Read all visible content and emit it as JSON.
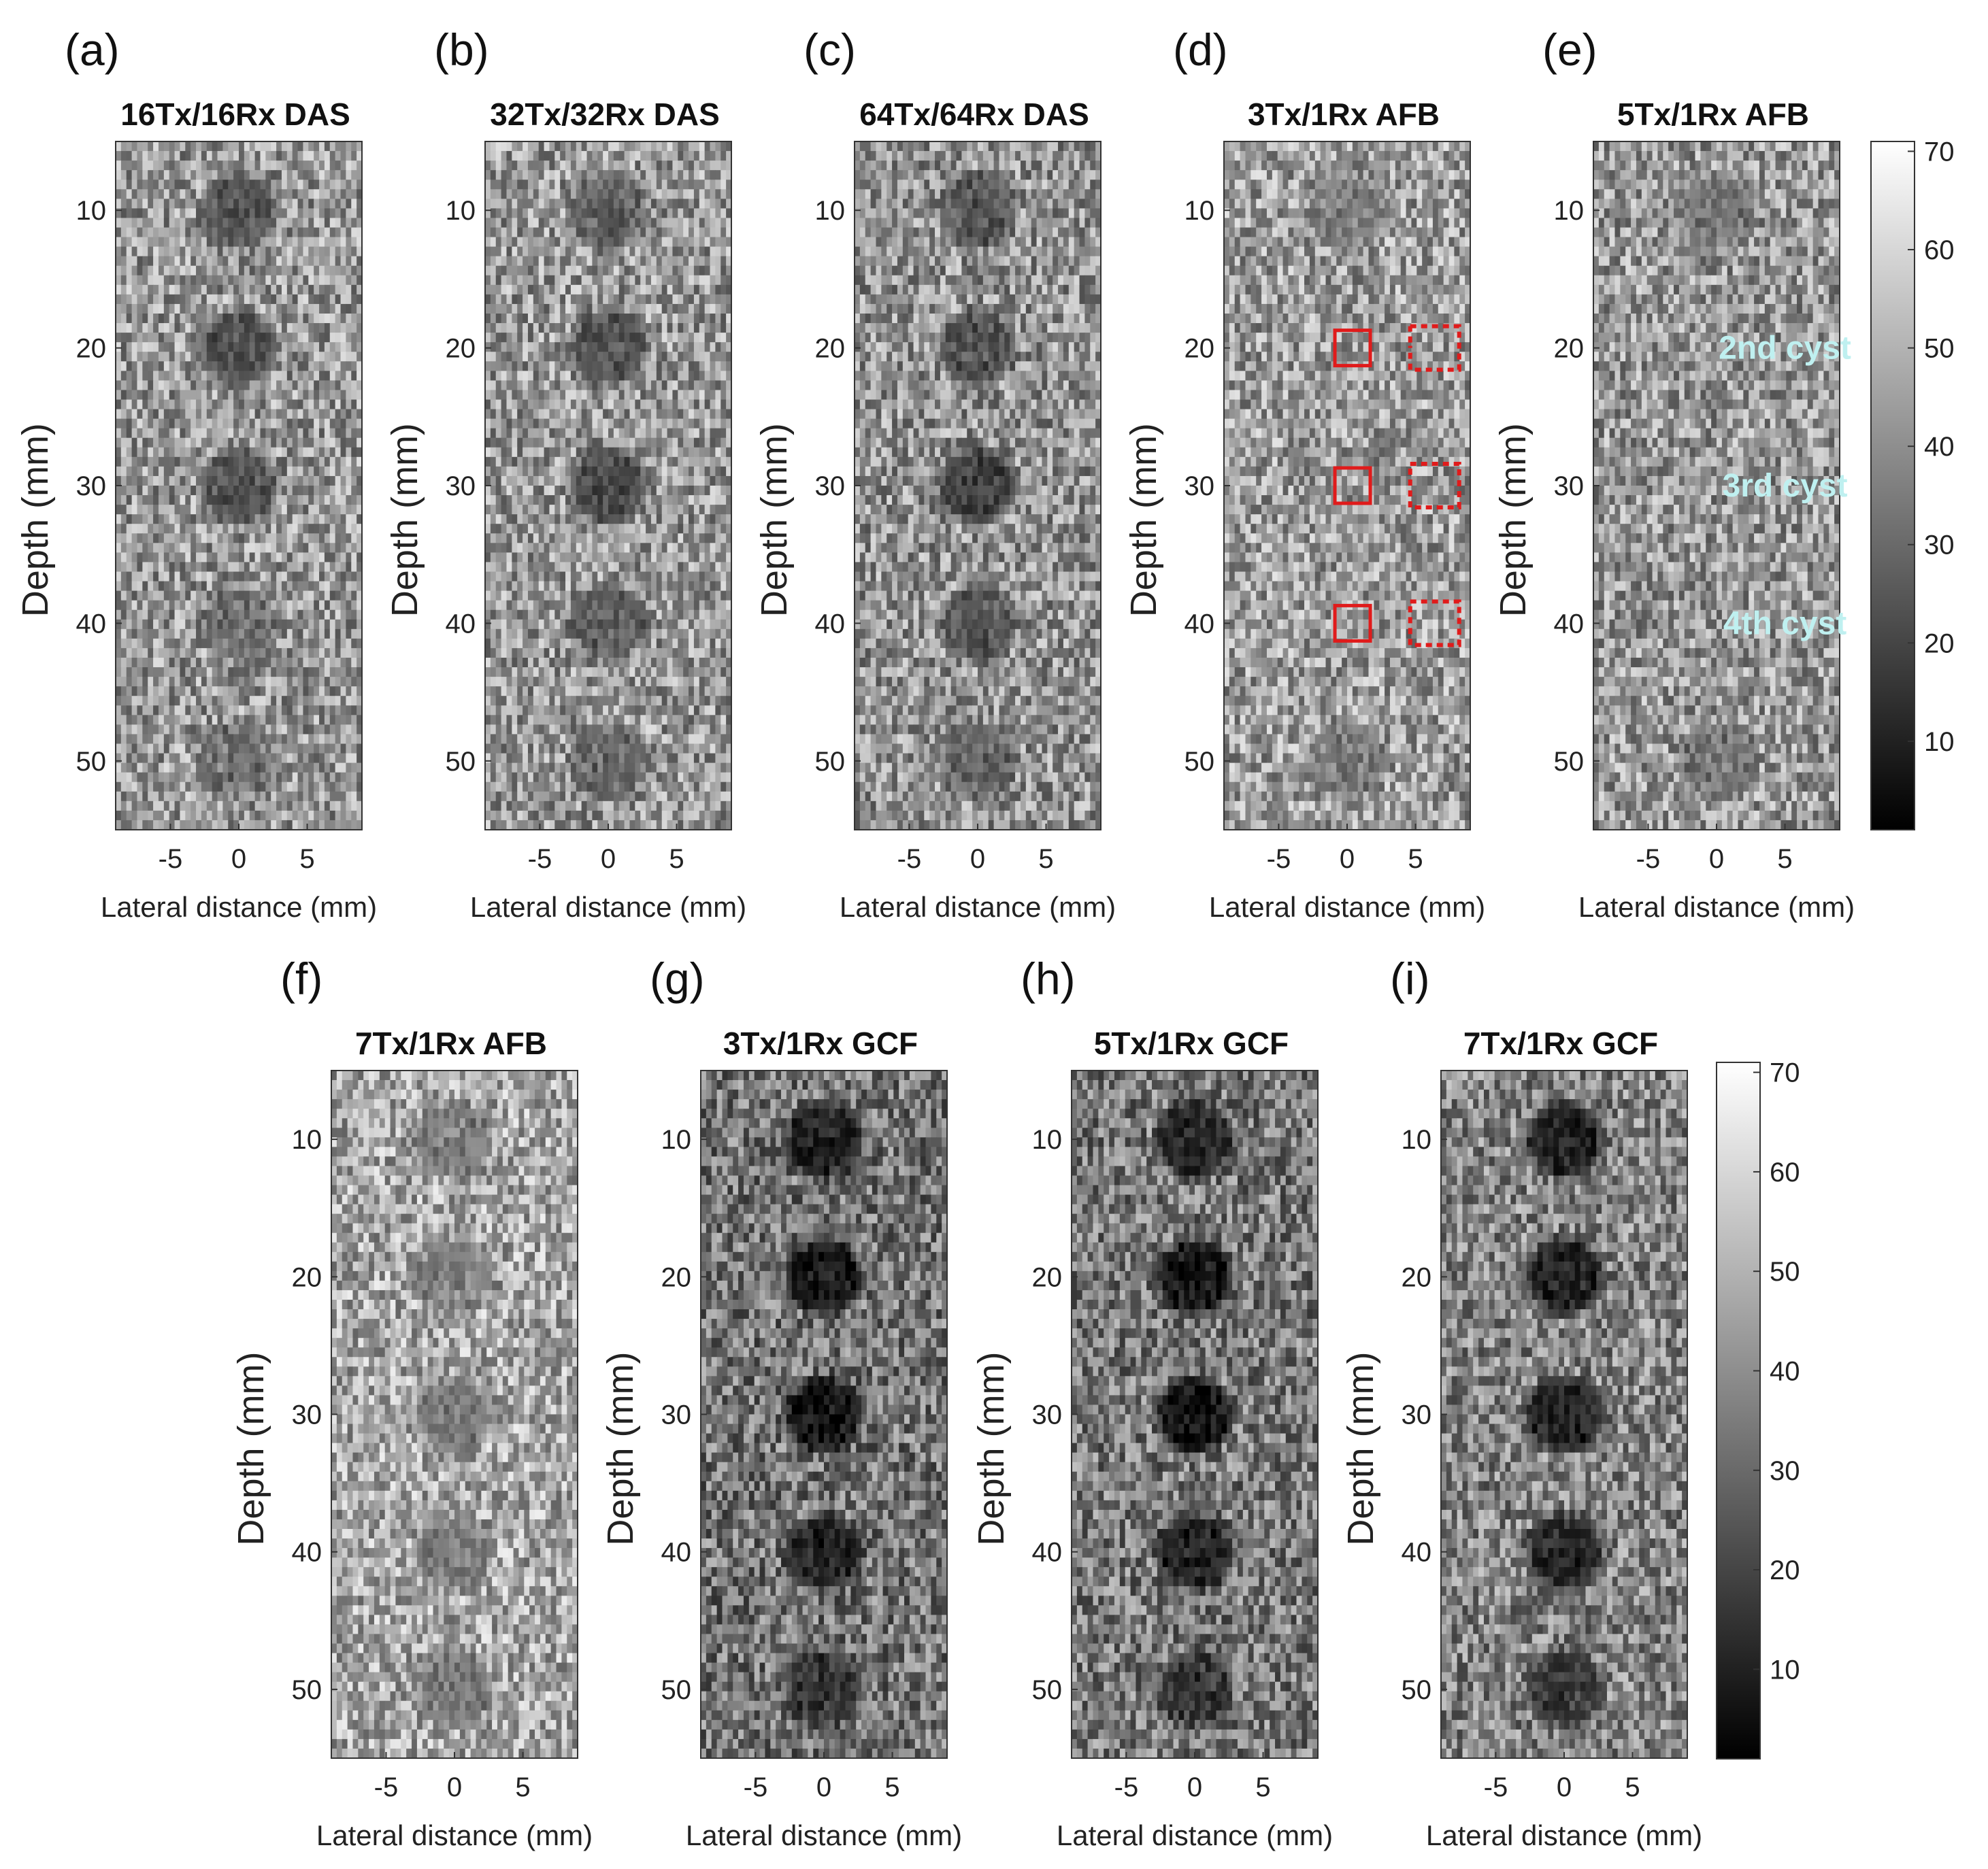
{
  "colors": {
    "roi_box": "#e01b1b",
    "annotation": "#bff0f0",
    "frame": "#333333"
  },
  "chart_data": {
    "type": "heatmap",
    "colormap": "gray",
    "colorbar": {
      "range": [
        1,
        71
      ],
      "ticks": [
        "10",
        "20",
        "30",
        "40",
        "50",
        "60",
        "70"
      ]
    },
    "xlabel": "Lateral distance (mm)",
    "ylabel": "Depth (mm)",
    "xlim": [
      -9,
      9
    ],
    "ylim": [
      5,
      55
    ],
    "xticks": [
      "-5",
      "0",
      "5"
    ],
    "yticks": [
      "10",
      "20",
      "30",
      "40",
      "50"
    ],
    "cyst_depths_mm": [
      10,
      20,
      30,
      40,
      50
    ],
    "panels": [
      {
        "label": "(a)",
        "title": "16Tx/16Rx DAS",
        "bg": 0.6,
        "cyst": 0.28,
        "contrast": [
          0.75,
          0.85,
          0.85,
          0.55,
          0.45
        ]
      },
      {
        "label": "(b)",
        "title": "32Tx/32Rx DAS",
        "bg": 0.6,
        "cyst": 0.28,
        "contrast": [
          0.7,
          0.85,
          0.95,
          0.7,
          0.6
        ]
      },
      {
        "label": "(c)",
        "title": "64Tx/64Rx DAS",
        "bg": 0.58,
        "cyst": 0.25,
        "contrast": [
          0.7,
          0.75,
          1.0,
          0.7,
          0.55
        ]
      },
      {
        "label": "(d)",
        "title": "3Tx/1Rx AFB",
        "bg": 0.62,
        "cyst": 0.4,
        "contrast": [
          0.55,
          0.05,
          0.05,
          0.05,
          0.6
        ]
      },
      {
        "label": "(e)",
        "title": "5Tx/1Rx AFB",
        "bg": 0.6,
        "cyst": 0.38,
        "contrast": [
          0.6,
          0.05,
          0.05,
          0.05,
          0.65
        ]
      },
      {
        "label": "(f)",
        "title": "7Tx/1Rx AFB",
        "bg": 0.66,
        "cyst": 0.4,
        "contrast": [
          0.65,
          0.6,
          0.65,
          0.65,
          0.7
        ]
      },
      {
        "label": "(g)",
        "title": "3Tx/1Rx GCF",
        "bg": 0.46,
        "cyst": 0.08,
        "contrast": [
          0.85,
          0.95,
          1.0,
          0.85,
          0.65
        ]
      },
      {
        "label": "(h)",
        "title": "5Tx/1Rx GCF",
        "bg": 0.48,
        "cyst": 0.08,
        "contrast": [
          0.85,
          0.95,
          1.0,
          0.85,
          0.65
        ]
      },
      {
        "label": "(i)",
        "title": "7Tx/1Rx GCF",
        "bg": 0.52,
        "cyst": 0.1,
        "contrast": [
          0.9,
          0.9,
          0.9,
          0.85,
          0.7
        ]
      }
    ],
    "roi_markers": {
      "panel": "(d)",
      "solid_depths_mm": [
        20,
        30,
        40
      ],
      "dotted_depths_mm": [
        20,
        30,
        40
      ]
    },
    "annotations": [
      {
        "panel": "(e)",
        "text": "2nd cyst",
        "depth_mm": 20
      },
      {
        "panel": "(e)",
        "text": "3rd cyst",
        "depth_mm": 30
      },
      {
        "panel": "(e)",
        "text": "4th cyst",
        "depth_mm": 40
      }
    ]
  }
}
